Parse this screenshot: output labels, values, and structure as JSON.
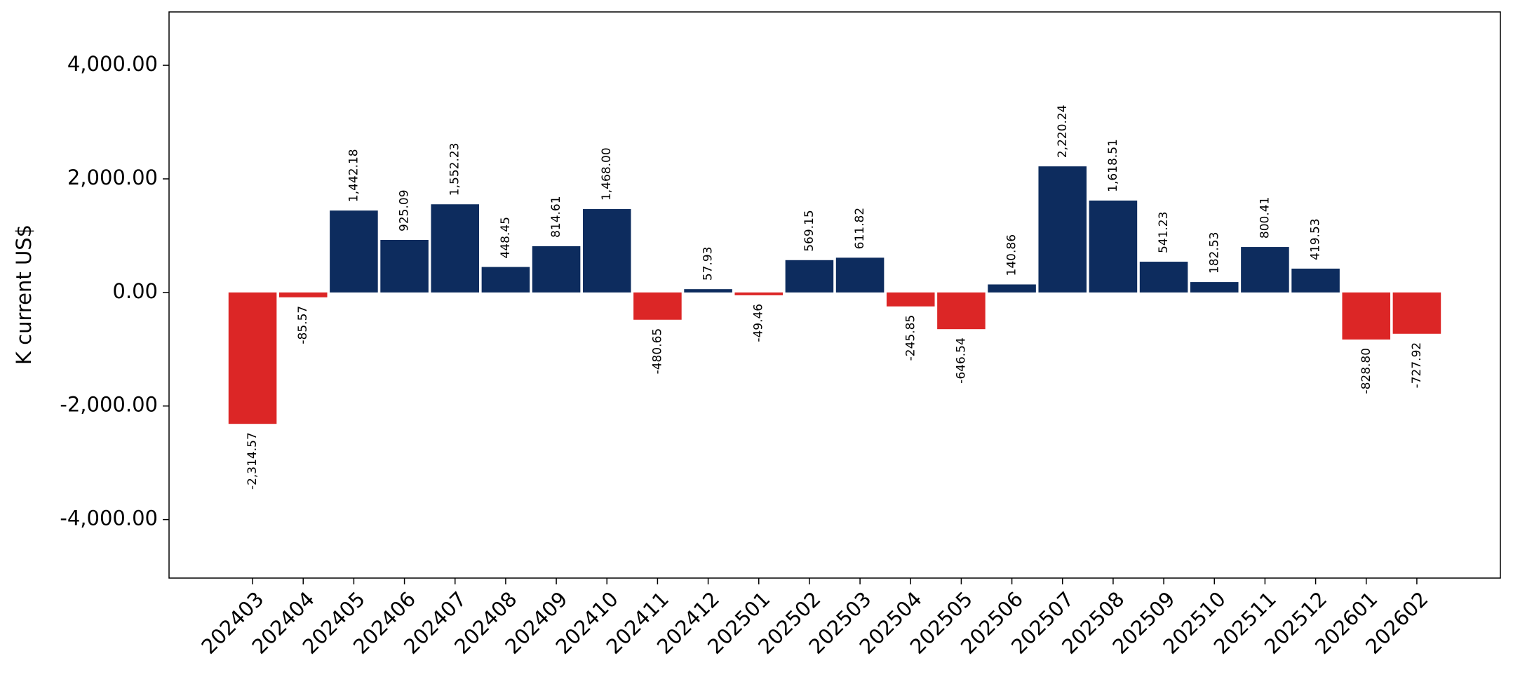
{
  "chart_data": {
    "type": "bar",
    "y_label": "K current US$",
    "categories": [
      "202403",
      "202404",
      "202405",
      "202406",
      "202407",
      "202408",
      "202409",
      "202410",
      "202411",
      "202412",
      "202501",
      "202502",
      "202503",
      "202504",
      "202505",
      "202506",
      "202507",
      "202508",
      "202509",
      "202510",
      "202511",
      "202512",
      "202601",
      "202602"
    ],
    "values": [
      -2314.57,
      -85.57,
      1442.18,
      925.09,
      1552.23,
      448.45,
      814.61,
      1468.0,
      -480.65,
      57.93,
      -49.46,
      569.15,
      611.82,
      -245.85,
      -646.54,
      140.86,
      2220.24,
      1618.51,
      541.23,
      182.53,
      800.41,
      419.53,
      -828.8,
      -727.92
    ],
    "value_labels": [
      "-2,314.57",
      "-85.57",
      "1,442.18",
      "925.09",
      "1,552.23",
      "448.45",
      "814.61",
      "1,468.00",
      "-480.65",
      "57.93",
      "-49.46",
      "569.15",
      "611.82",
      "-245.85",
      "-646.54",
      "140.86",
      "2,220.24",
      "1,618.51",
      "541.23",
      "182.53",
      "800.41",
      "419.53",
      "-828.80",
      "-727.92"
    ],
    "positive_color": "#0d2c5e",
    "negative_color": "#dc2626",
    "ylim": [
      -5030,
      4940
    ],
    "yticks": [
      {
        "value": -4000,
        "label": "-4,000.00"
      },
      {
        "value": -2000,
        "label": "-2,000.00"
      },
      {
        "value": 0,
        "label": "0.00"
      },
      {
        "value": 2000,
        "label": "2,000.00"
      },
      {
        "value": 4000,
        "label": "4,000.00"
      }
    ]
  }
}
